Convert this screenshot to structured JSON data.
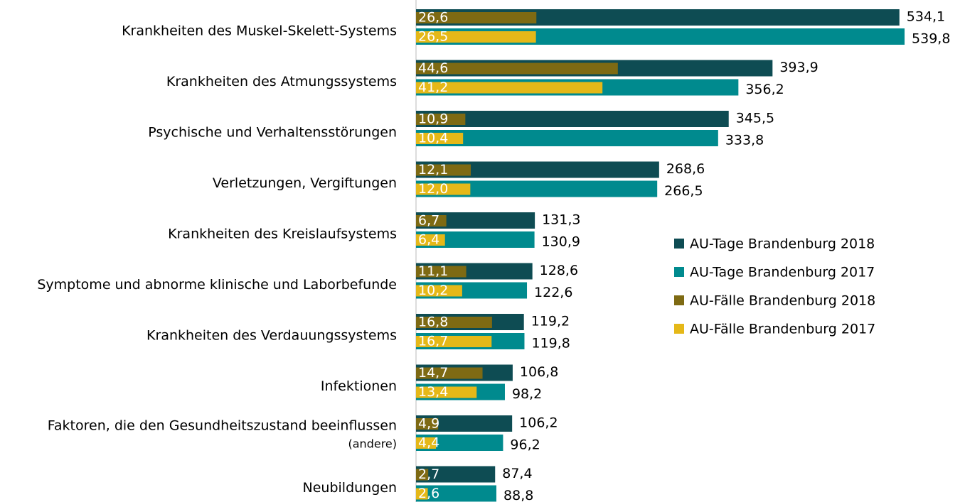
{
  "chart_data": {
    "type": "bar",
    "orientation": "horizontal",
    "categories": [
      "Krankheiten des Muskel-Skelett-Systems",
      "Krankheiten des Atmungssystems",
      "Psychische und Verhaltensstörungen",
      "Verletzungen, Vergiftungen",
      "Krankheiten des Kreislaufsystems",
      "Symptome und abnorme klinische und Laborbefunde",
      "Krankheiten des Verdauungssystems",
      "Infektionen",
      [
        "Faktoren, die den Gesundheitszustand beeinflussen",
        "(andere)"
      ],
      "Neubildungen"
    ],
    "xlim": [
      0,
      550
    ],
    "x2lim": [
      0,
      110
    ],
    "series": [
      {
        "name": "AU-Tage Brandenburg 2018",
        "color": "#0e4c53",
        "values": [
          534.1,
          393.9,
          345.5,
          268.6,
          131.3,
          128.6,
          119.2,
          106.8,
          106.2,
          87.4
        ],
        "value_labels": [
          "534,1",
          "393,9",
          "345,5",
          "268,6",
          "131,3",
          "128,6",
          "119,2",
          "106,8",
          "106,2",
          "87,4"
        ]
      },
      {
        "name": "AU-Tage Brandenburg 2017",
        "color": "#008a8e",
        "values": [
          539.8,
          356.2,
          333.8,
          266.5,
          130.9,
          122.6,
          119.8,
          98.2,
          96.2,
          88.8
        ],
        "value_labels": [
          "539,8",
          "356,2",
          "333,8",
          "266,5",
          "130,9",
          "122,6",
          "119,8",
          "98,2",
          "96,2",
          "88,8"
        ]
      },
      {
        "name": "AU-Fälle Brandenburg 2018",
        "color": "#7e6a13",
        "axis": "x2",
        "values": [
          26.6,
          44.6,
          10.9,
          12.1,
          6.7,
          11.1,
          16.8,
          14.7,
          4.9,
          2.7
        ],
        "value_labels": [
          "26,6",
          "44,6",
          "10,9",
          "12,1",
          "6,7",
          "11,1",
          "16,8",
          "14,7",
          "4,9",
          "2,7"
        ]
      },
      {
        "name": "AU-Fälle Brandenburg 2017",
        "color": "#e5b818",
        "axis": "x2",
        "values": [
          26.5,
          41.2,
          10.4,
          12.0,
          6.4,
          10.2,
          16.7,
          13.4,
          4.4,
          2.6
        ],
        "value_labels": [
          "26,5",
          "41,2",
          "10,4",
          "12,0",
          "6,4",
          "10,2",
          "16,7",
          "13,4",
          "4,4",
          "2,6"
        ]
      }
    ]
  }
}
